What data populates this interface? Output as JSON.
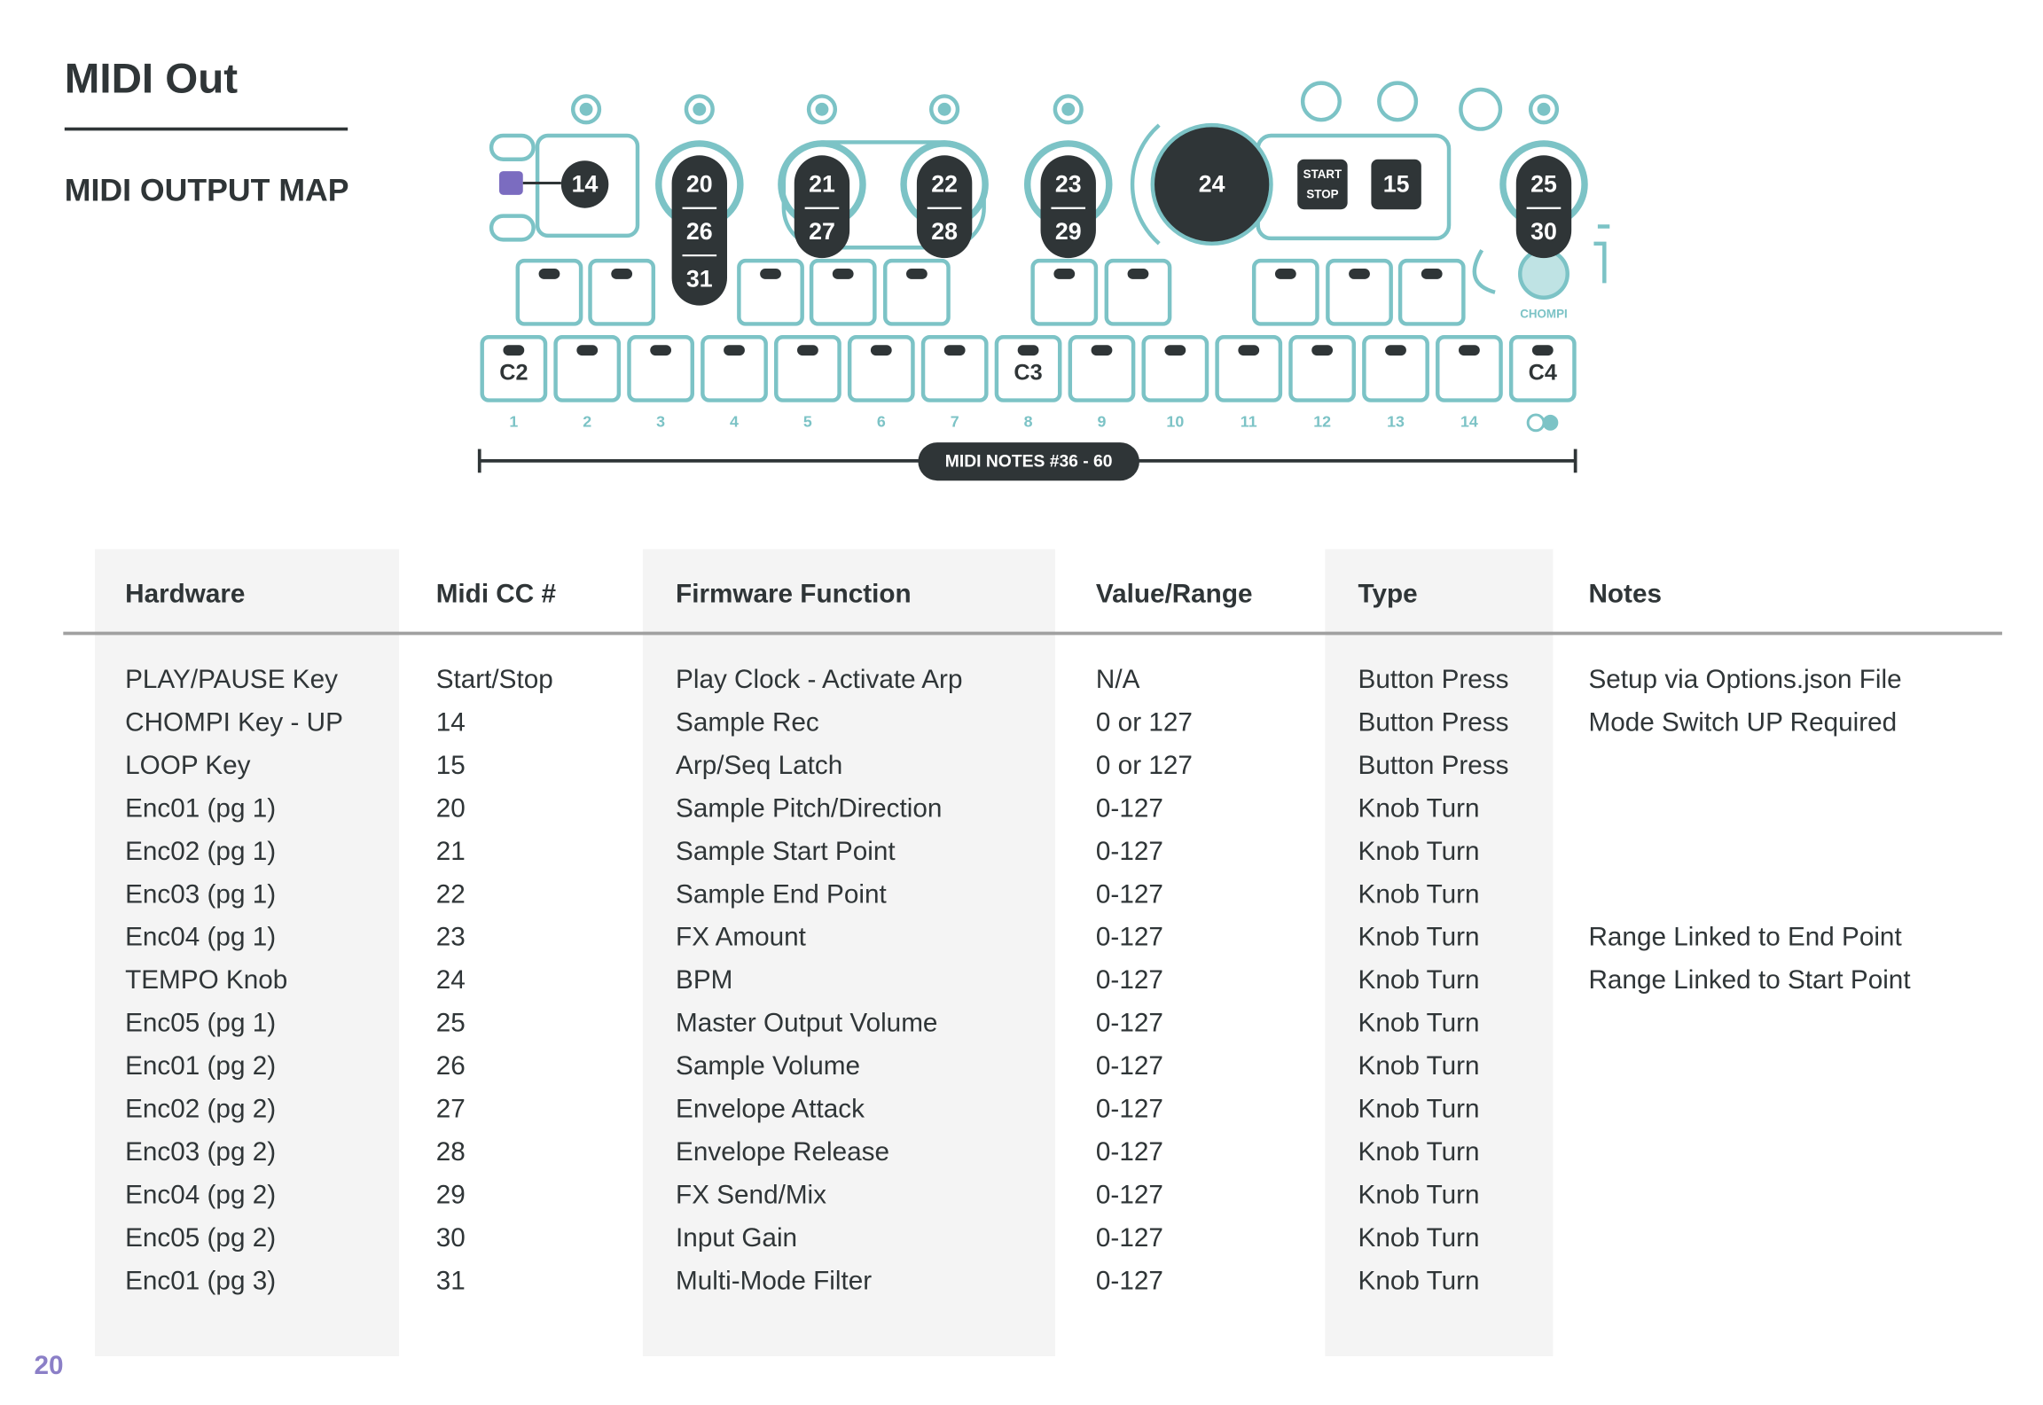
{
  "header": {
    "title": "MIDI Out",
    "subtitle": "MIDI OUTPUT MAP"
  },
  "diagram": {
    "knobs": [
      {
        "labels": [
          "14"
        ]
      },
      {
        "labels": [
          "20",
          "26",
          "31"
        ]
      },
      {
        "labels": [
          "21",
          "27"
        ]
      },
      {
        "labels": [
          "22",
          "28"
        ]
      },
      {
        "labels": [
          "23",
          "29"
        ]
      },
      {
        "labels": [
          "24"
        ]
      },
      {
        "labels": [
          "15"
        ]
      },
      {
        "labels": [
          "25",
          "30"
        ]
      }
    ],
    "start_label": "START",
    "stop_label": "STOP",
    "brand": "CHOMPI",
    "octave_labels": [
      "C2",
      "C3",
      "C4"
    ],
    "key_numbers": [
      "1",
      "2",
      "3",
      "4",
      "5",
      "6",
      "7",
      "8",
      "9",
      "10",
      "11",
      "12",
      "13",
      "14"
    ],
    "range_label": "MIDI NOTES #36 - 60"
  },
  "table": {
    "columns": [
      "Hardware",
      "Midi CC #",
      "Firmware Function",
      "Value/Range",
      "Type",
      "Notes"
    ],
    "rows": [
      {
        "hardware": "PLAY/PAUSE Key",
        "cc": "Start/Stop",
        "function": "Play Clock - Activate Arp",
        "range": "N/A",
        "type": "Button Press",
        "notes": "Setup via Options.json File"
      },
      {
        "hardware": "CHOMPI Key - UP",
        "cc": "14",
        "function": "Sample Rec",
        "range": "0 or 127",
        "type": "Button Press",
        "notes": "Mode Switch UP Required"
      },
      {
        "hardware": "LOOP Key",
        "cc": "15",
        "function": "Arp/Seq Latch",
        "range": "0 or 127",
        "type": "Button Press"
      },
      {
        "hardware": "Enc01 (pg 1)",
        "cc": "20",
        "function": "Sample Pitch/Direction",
        "range": "0-127",
        "type": "Knob Turn"
      },
      {
        "hardware": "Enc02 (pg 1)",
        "cc": "21",
        "function": "Sample Start Point",
        "range": "0-127",
        "type": "Knob Turn"
      },
      {
        "hardware": "Enc03 (pg 1)",
        "cc": "22",
        "function": "Sample End Point",
        "range": "0-127",
        "type": "Knob Turn"
      },
      {
        "hardware": "Enc04 (pg 1)",
        "cc": "23",
        "function": "FX Amount",
        "range": "0-127",
        "type": "Knob Turn",
        "notes": "Range Linked to End Point"
      },
      {
        "hardware": "TEMPO Knob",
        "cc": "24",
        "function": "BPM",
        "range": "0-127",
        "type": "Knob Turn",
        "notes": "Range Linked to Start Point"
      },
      {
        "hardware": "Enc05 (pg 1)",
        "cc": "25",
        "function": "Master Output Volume",
        "range": "0-127",
        "type": "Knob Turn"
      },
      {
        "hardware": "Enc01 (pg 2)",
        "cc": "26",
        "function": "Sample Volume",
        "range": "0-127",
        "type": "Knob Turn"
      },
      {
        "hardware": "Enc02 (pg 2)",
        "cc": "27",
        "function": "Envelope Attack",
        "range": "0-127",
        "type": "Knob Turn"
      },
      {
        "hardware": "Enc03 (pg 2)",
        "cc": "28",
        "function": "Envelope Release",
        "range": "0-127",
        "type": "Knob Turn"
      },
      {
        "hardware": "Enc04 (pg 2)",
        "cc": "29",
        "function": "FX Send/Mix",
        "range": "0-127",
        "type": "Knob Turn"
      },
      {
        "hardware": "Enc05 (pg 2)",
        "cc": "30",
        "function": "Input Gain",
        "range": "0-127",
        "type": "Knob Turn"
      },
      {
        "hardware": "Enc01 (pg 3)",
        "cc": "31",
        "function": "Multi-Mode Filter",
        "range": "0-127",
        "type": "Knob Turn"
      }
    ]
  },
  "page_number": "20"
}
